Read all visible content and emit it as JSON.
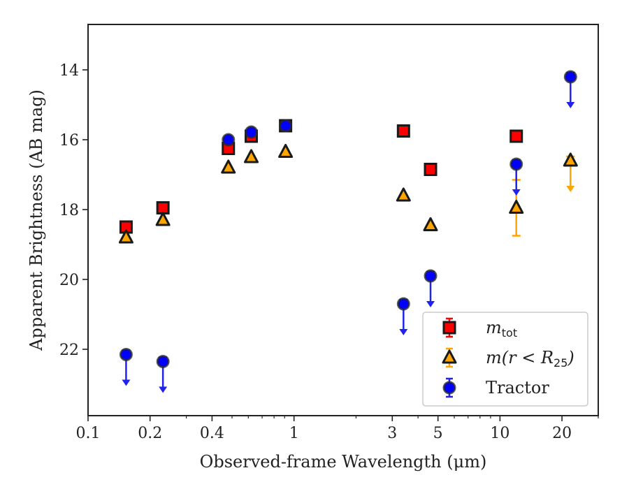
{
  "chart_data": {
    "type": "scatter",
    "xlabel": "Observed-frame Wavelength (μm)",
    "ylabel": "Apparent Brightness (AB mag)",
    "x_scale": "log",
    "xlim": [
      0.1,
      30
    ],
    "ylim": [
      23.9,
      12.7
    ],
    "y_inverted": true,
    "x_ticks": [
      {
        "value": 0.1,
        "label": "0.1"
      },
      {
        "value": 0.2,
        "label": "0.2"
      },
      {
        "value": 0.4,
        "label": "0.4"
      },
      {
        "value": 1,
        "label": "1"
      },
      {
        "value": 3,
        "label": "3"
      },
      {
        "value": 5,
        "label": "5"
      },
      {
        "value": 10,
        "label": "10"
      },
      {
        "value": 20,
        "label": "20"
      }
    ],
    "x_minor_ticks": [
      0.3,
      0.5,
      0.6,
      0.7,
      0.8,
      0.9,
      2,
      4,
      6,
      7,
      8,
      9,
      30
    ],
    "y_ticks": [
      14,
      16,
      18,
      20,
      22
    ],
    "grid": false,
    "legend_position": "lower-right",
    "series": [
      {
        "name": "m_tot",
        "label_main": "m",
        "label_sub": "tot",
        "marker": "square",
        "color": "#ff0000",
        "errorbar_color": "#ff0000",
        "points": [
          {
            "x": 0.153,
            "y": 18.5
          },
          {
            "x": 0.231,
            "y": 17.95
          },
          {
            "x": 0.48,
            "y": 16.25
          },
          {
            "x": 0.62,
            "y": 15.9
          },
          {
            "x": 0.91,
            "y": 15.6
          },
          {
            "x": 3.4,
            "y": 15.75
          },
          {
            "x": 4.6,
            "y": 16.85
          },
          {
            "x": 12.0,
            "y": 15.9
          }
        ]
      },
      {
        "name": "m(r < R25)",
        "label_main": "m(r < R",
        "label_sub": "25",
        "label_tail": ")",
        "marker": "triangle",
        "color": "#ffa500",
        "errorbar_color": "#ffa500",
        "points": [
          {
            "x": 0.153,
            "y": 18.8
          },
          {
            "x": 0.231,
            "y": 18.3
          },
          {
            "x": 0.48,
            "y": 16.8
          },
          {
            "x": 0.62,
            "y": 16.5
          },
          {
            "x": 0.91,
            "y": 16.35
          },
          {
            "x": 3.4,
            "y": 17.6
          },
          {
            "x": 4.6,
            "y": 18.45
          },
          {
            "x": 12.0,
            "y": 17.95,
            "err_lo": 0.8,
            "err_hi": 0.8
          },
          {
            "x": 22.0,
            "y": 16.6,
            "upper_limit": true
          }
        ]
      },
      {
        "name": "Tractor",
        "label_main": "Tractor",
        "marker": "circle",
        "color": "#0000ff",
        "errorbar_color": "#2222ee",
        "points": [
          {
            "x": 0.153,
            "y": 22.15,
            "upper_limit": true
          },
          {
            "x": 0.231,
            "y": 22.35,
            "upper_limit": true
          },
          {
            "x": 0.48,
            "y": 16.0
          },
          {
            "x": 0.62,
            "y": 15.78
          },
          {
            "x": 0.91,
            "y": 15.6
          },
          {
            "x": 3.4,
            "y": 20.7,
            "upper_limit": true
          },
          {
            "x": 4.6,
            "y": 19.9,
            "upper_limit": true
          },
          {
            "x": 12.0,
            "y": 16.7,
            "upper_limit": true
          },
          {
            "x": 22.0,
            "y": 14.2,
            "upper_limit": true
          }
        ]
      }
    ]
  }
}
